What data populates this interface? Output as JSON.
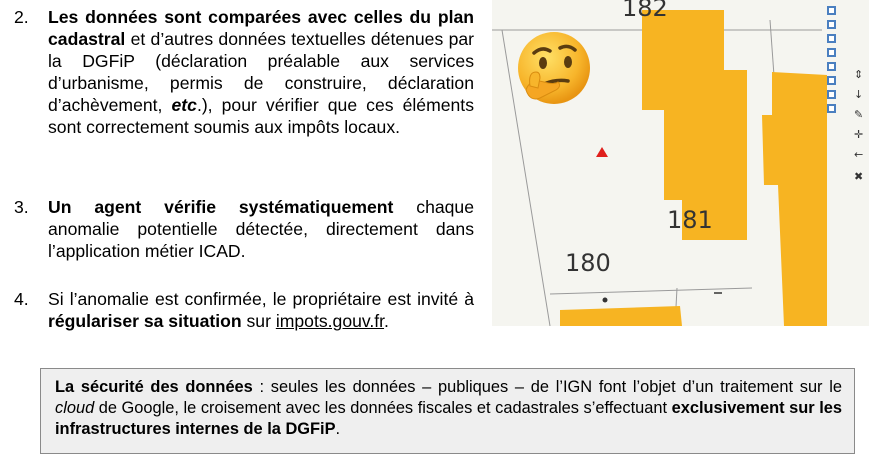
{
  "list": {
    "item2": {
      "num": "2.",
      "bold1": "Les données sont comparées avec celles du plan cadastral",
      "rest1": " et d’autres données textuelles détenues par la DGFiP (déclaration préalable aux services d’urbanisme, permis de construire, déclaration d’achèvement, ",
      "etc": "etc",
      "rest2": ".), pour vérifier que ces éléments sont correctement soumis aux impôts locaux."
    },
    "item3": {
      "num": "3.",
      "bold1": "Un agent vérifie systématiquement",
      "rest1": " chaque anomalie potentielle détectée, directement dans l’application métier ICAD."
    },
    "item4": {
      "num": "4.",
      "rest1": "Si l’anomalie est confirmée, le propriétaire est invité à ",
      "bold1": "régulariser sa situation",
      "rest2": " sur ",
      "link": "impots.gouv.fr",
      "rest3": "."
    }
  },
  "map": {
    "labels": [
      "182",
      "181",
      "180"
    ],
    "parcel_color": "#f7b422",
    "marker_color": "#e0201c"
  },
  "emoji": {
    "icon": "thinking-face-icon"
  },
  "note": {
    "bold1": "La sécurité des données",
    "rest1": " : seules les données – publiques – de l’IGN font l’objet d’un traitement sur le ",
    "cloud": "cloud",
    "rest2": " de Google, le croisement avec les données fiscales et cadastrales s’effectuant ",
    "bold2": "exclusivement sur les infrastructures internes de la DGFiP",
    "rest3": "."
  }
}
